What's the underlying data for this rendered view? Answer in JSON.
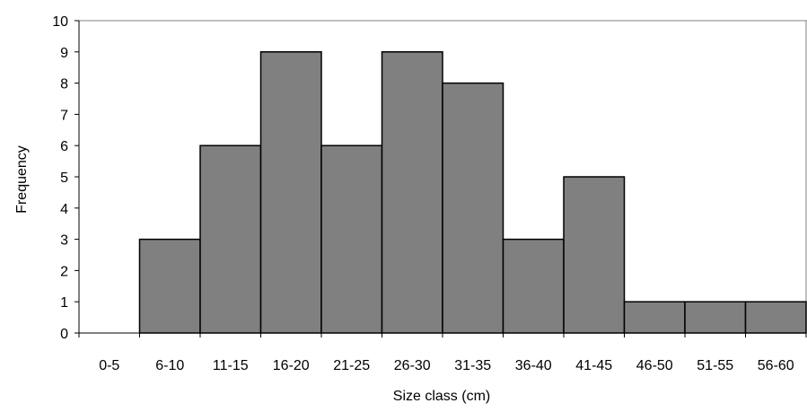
{
  "chart_data": {
    "type": "bar",
    "categories": [
      "0-5",
      "6-10",
      "11-15",
      "16-20",
      "21-25",
      "26-30",
      "31-35",
      "36-40",
      "41-45",
      "46-50",
      "51-55",
      "56-60"
    ],
    "values": [
      0,
      3,
      6,
      9,
      6,
      9,
      8,
      3,
      5,
      1,
      1,
      1
    ],
    "title": "",
    "xlabel": "Size class (cm)",
    "ylabel": "Frequency",
    "ylim": [
      0,
      10
    ],
    "yticks": [
      0,
      1,
      2,
      3,
      4,
      5,
      6,
      7,
      8,
      9,
      10
    ],
    "grid": false,
    "legend": "none",
    "colors": {
      "bar_fill": "#808080",
      "bar_stroke": "#000000",
      "axis": "#000000",
      "frame": "#808080"
    }
  }
}
